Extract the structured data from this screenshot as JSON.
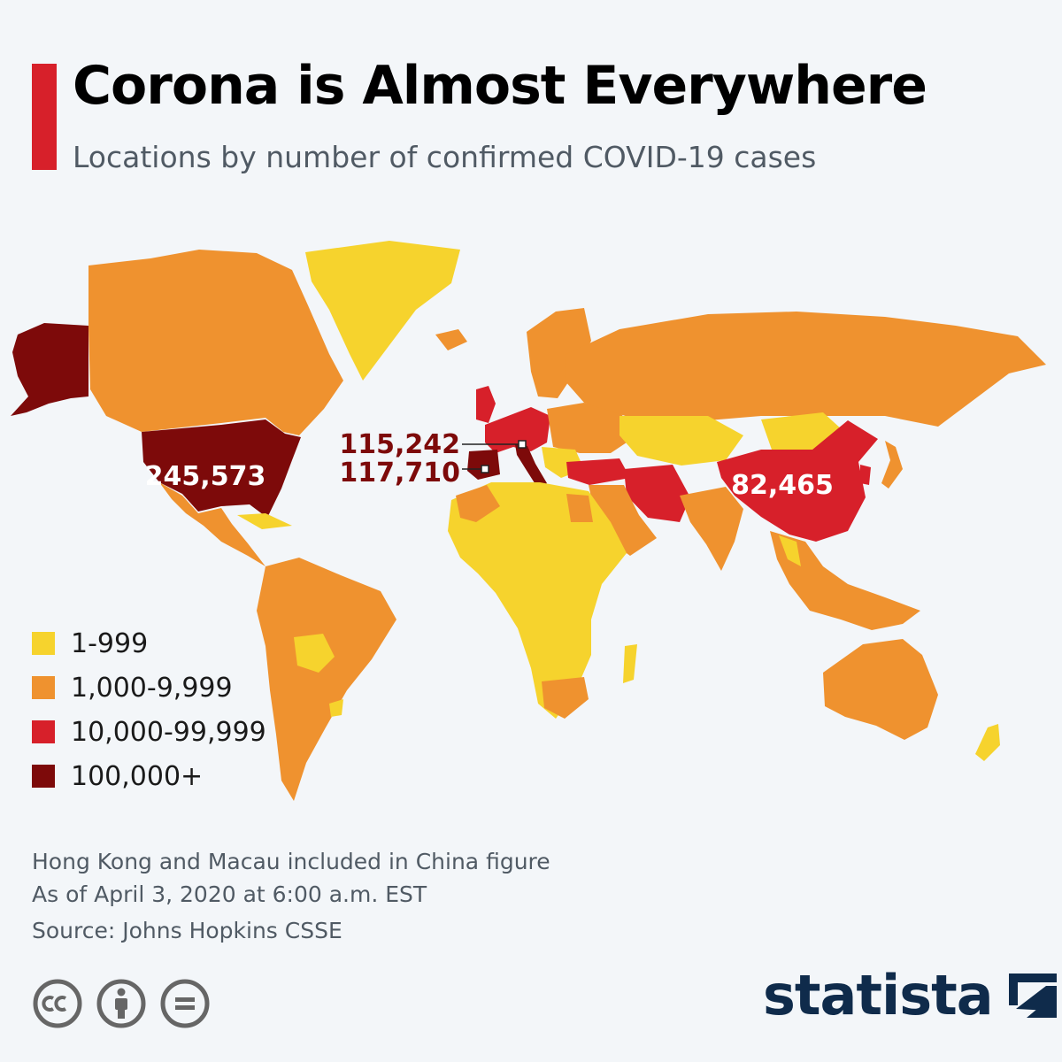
{
  "title": "Corona is Almost Everywhere",
  "subtitle": "Locations by number of confirmed COVID-19 cases",
  "colors": {
    "accent": "#d7202a",
    "tier1": "#f6d32d",
    "tier2": "#ef922f",
    "tier3": "#d7202a",
    "tier4": "#7d0a0a",
    "no_data": "#d5d7d9",
    "brand": "#0f2b4b"
  },
  "legend": [
    {
      "label": "1-999",
      "color": "#f6d32d"
    },
    {
      "label": "1,000-9,999",
      "color": "#ef922f"
    },
    {
      "label": "10,000-99,999",
      "color": "#d7202a"
    },
    {
      "label": "100,000+",
      "color": "#7d0a0a"
    }
  ],
  "map_labels": {
    "usa": "245,573",
    "italy": "115,242",
    "spain": "117,710",
    "china": "82,465"
  },
  "footnotes": {
    "note": "Hong Kong and Macau included in China figure",
    "date": "As of April 3, 2020 at 6:00 a.m. EST",
    "source": "Source: Johns Hopkins CSSE"
  },
  "license_icons": [
    "creative-commons-icon",
    "attribution-icon",
    "no-derivatives-icon"
  ],
  "brand": {
    "name": "statista"
  }
}
